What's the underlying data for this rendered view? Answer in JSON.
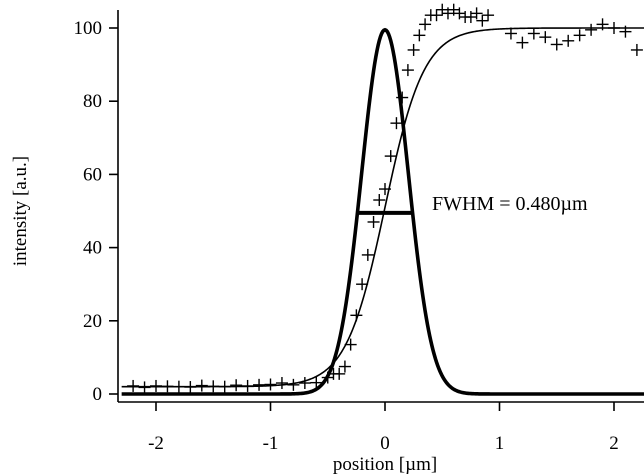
{
  "chart_data": {
    "type": "scatter",
    "xlabel": "position [µm]",
    "ylabel": "intensity [a.u.]",
    "xlim": [
      -2.3,
      2.3
    ],
    "ylim": [
      0,
      100
    ],
    "x_ticks": [
      -2,
      -1,
      0,
      1,
      2
    ],
    "y_ticks": [
      0,
      20,
      40,
      60,
      80,
      100
    ],
    "x_tick_labels": [
      "-2",
      "-1",
      "0",
      "1",
      "2"
    ],
    "y_tick_labels": [
      "0",
      "20",
      "40",
      "60",
      "80",
      "100"
    ],
    "grid": false,
    "annotation": "FWHM = 0.480µm",
    "fwhm": {
      "x_start": -0.24,
      "x_end": 0.24,
      "y": 49.5
    },
    "gaussian_curve": {
      "center": 0.0,
      "fwhm": 0.48,
      "amplitude": 99.5
    },
    "edge_fit_curve": {
      "center": 0.0,
      "low": 2.0,
      "high": 100.0,
      "width": 0.17
    },
    "measured_points": {
      "x": [
        -2.2,
        -2.1,
        -2.0,
        -1.9,
        -1.8,
        -1.7,
        -1.6,
        -1.5,
        -1.4,
        -1.3,
        -1.2,
        -1.1,
        -1.0,
        -0.9,
        -0.8,
        -0.7,
        -0.6,
        -0.5,
        -0.45,
        -0.4,
        -0.35,
        -0.3,
        -0.25,
        -0.2,
        -0.15,
        -0.1,
        -0.05,
        0.0,
        0.05,
        0.1,
        0.15,
        0.2,
        0.25,
        0.3,
        0.35,
        0.4,
        0.45,
        0.5,
        0.55,
        0.6,
        0.65,
        0.7,
        0.75,
        0.8,
        0.85,
        0.9,
        1.1,
        1.2,
        1.3,
        1.4,
        1.5,
        1.6,
        1.7,
        1.8,
        1.9,
        2.0,
        2.1,
        2.2
      ],
      "y": [
        2.2,
        1.8,
        2.2,
        2.1,
        2.0,
        1.9,
        2.3,
        2.1,
        2.0,
        2.4,
        2.2,
        2.5,
        2.6,
        3.0,
        2.5,
        3.0,
        3.1,
        4.5,
        5.5,
        5.5,
        7.5,
        13.5,
        21.5,
        30.0,
        38.0,
        47.0,
        53.0,
        56.0,
        65.0,
        74.0,
        81.0,
        88.5,
        94.0,
        98.0,
        101.0,
        103.5,
        103.5,
        105.0,
        104.0,
        105.0,
        104.0,
        103.0,
        103.0,
        104.0,
        102.0,
        103.5,
        98.5,
        96.0,
        98.5,
        97.5,
        95.5,
        96.5,
        98.0,
        99.5,
        101.0,
        100.0,
        99.0,
        94.0
      ]
    }
  }
}
